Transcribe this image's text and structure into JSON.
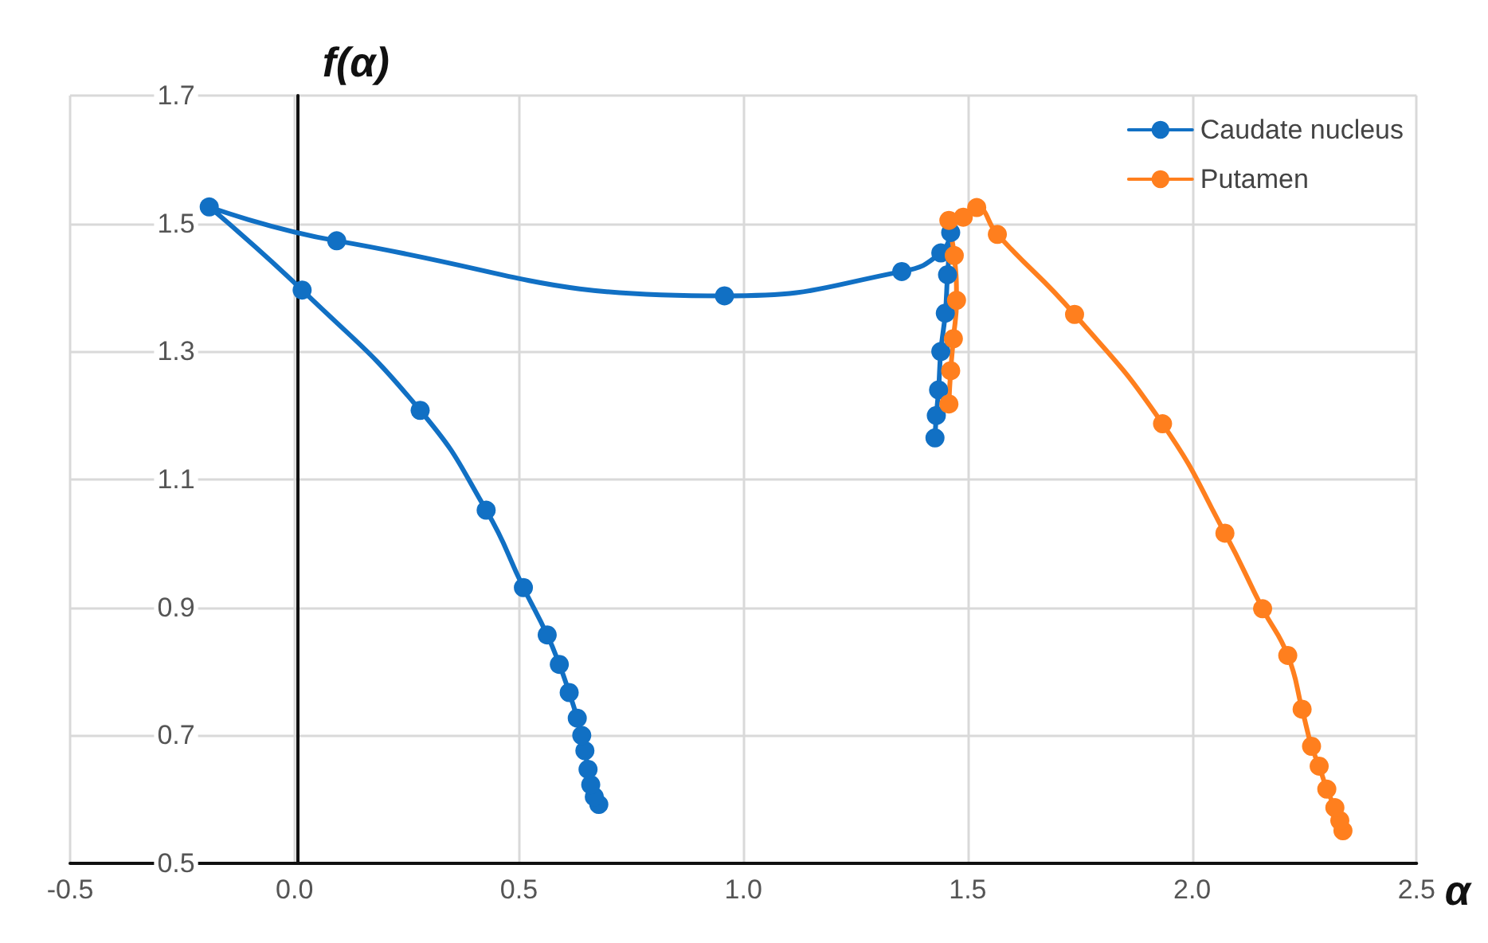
{
  "chart_data": {
    "type": "line",
    "xlabel": "α",
    "ylabel": "f(α)",
    "xlim": [
      -0.5,
      2.5
    ],
    "xticks": [
      -0.5,
      {
        "value": 0,
        "label": "0.0"
      },
      0.5,
      {
        "value": 1,
        "label": "1.0"
      },
      1.5,
      {
        "value": 2,
        "label": "2.0"
      },
      2.5
    ],
    "ylim": [
      0.5,
      1.7
    ],
    "yticks": [
      0.5,
      0.7,
      0.9,
      1.1,
      1.3,
      1.5,
      1.7
    ],
    "grid": true,
    "legend": "top right",
    "marker": "circle",
    "line_style": "solid",
    "series": [
      {
        "name": "Caudate nucleus",
        "color": "#1170c4",
        "x": [
          0.678,
          0.668,
          0.66,
          0.654,
          0.647,
          0.64,
          0.63,
          0.612,
          0.59,
          0.563,
          0.51,
          0.427,
          0.28,
          0.017,
          -0.19,
          0.094,
          0.958,
          1.353,
          1.44,
          1.462,
          1.455,
          1.45,
          1.44,
          1.435,
          1.43,
          1.427
        ],
        "values": [
          0.592,
          0.604,
          0.623,
          0.647,
          0.676,
          0.7,
          0.727,
          0.767,
          0.811,
          0.857,
          0.931,
          1.052,
          1.208,
          1.396,
          1.526,
          1.473,
          1.387,
          1.425,
          1.454,
          1.486,
          1.42,
          1.36,
          1.3,
          1.24,
          1.2,
          1.165
        ]
      },
      {
        "name": "Putamen",
        "color": "#ff7f1e",
        "x": [
          2.336,
          2.329,
          2.318,
          2.3,
          2.283,
          2.266,
          2.245,
          2.213,
          2.157,
          2.073,
          1.934,
          1.738,
          1.566,
          1.52,
          1.49,
          1.458,
          1.47,
          1.475,
          1.468,
          1.462,
          1.458
        ],
        "values": [
          0.551,
          0.567,
          0.587,
          0.616,
          0.652,
          0.683,
          0.741,
          0.825,
          0.898,
          1.016,
          1.187,
          1.358,
          1.483,
          1.525,
          1.51,
          1.505,
          1.45,
          1.38,
          1.32,
          1.27,
          1.218
        ]
      }
    ]
  }
}
